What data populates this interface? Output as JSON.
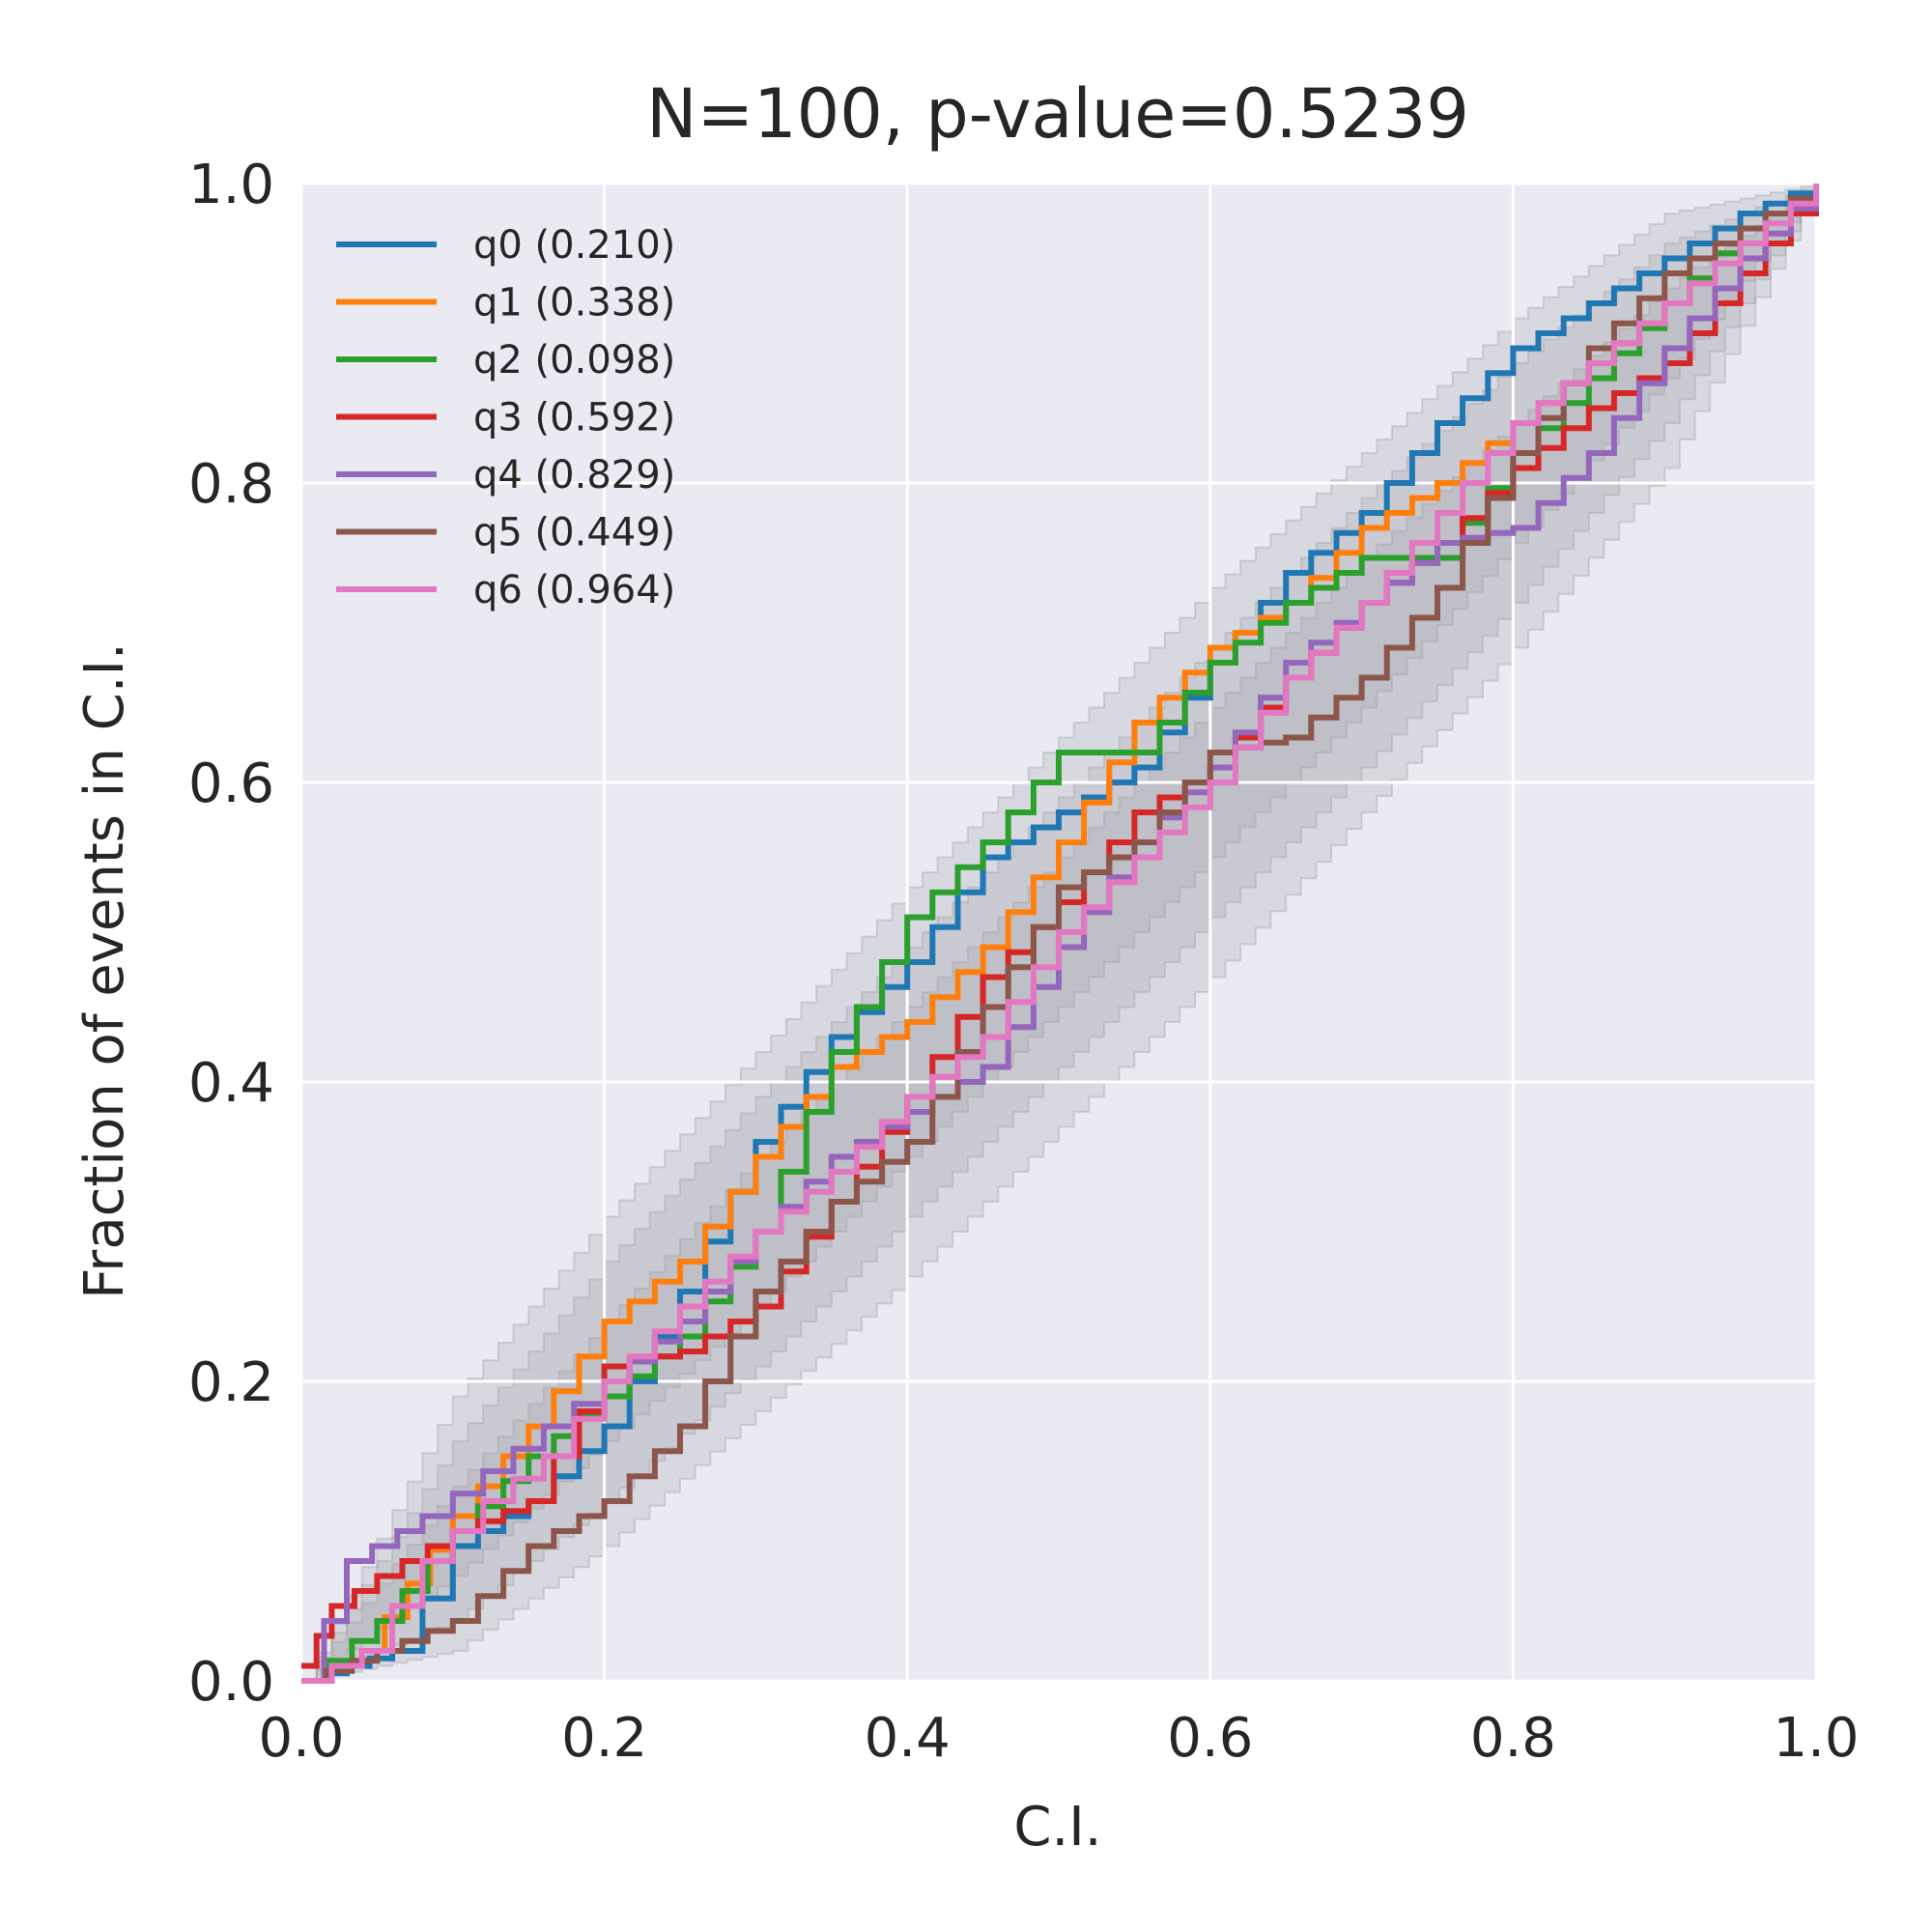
{
  "chart_data": {
    "type": "line",
    "title": "N=100, p-value=0.5239",
    "xlabel": "C.I.",
    "ylabel": "Fraction of events in C.I.",
    "xlim": [
      0,
      1
    ],
    "ylim": [
      0,
      1
    ],
    "xticks": [
      "0.0",
      "0.2",
      "0.4",
      "0.6",
      "0.8",
      "1.0"
    ],
    "yticks": [
      "0.0",
      "0.2",
      "0.4",
      "0.6",
      "0.8",
      "1.0"
    ],
    "grid": true,
    "legend_position": "top-left",
    "colors": {
      "background": "#EAEAF2",
      "bands": "#9A9A9E",
      "q0": "#1F77B4",
      "q1": "#FF7F0E",
      "q2": "#2CA02C",
      "q3": "#D62728",
      "q4": "#9467BD",
      "q5": "#8C564B",
      "q6": "#E377C2"
    },
    "confidence_bands": [
      {
        "level": "inner",
        "x": [
          0,
          0.1,
          0.2,
          0.3,
          0.4,
          0.5,
          0.6,
          0.7,
          0.8,
          0.9,
          1.0
        ],
        "lower": [
          0,
          0.07,
          0.16,
          0.25,
          0.35,
          0.45,
          0.55,
          0.65,
          0.76,
          0.87,
          1.0
        ],
        "upper": [
          0,
          0.13,
          0.24,
          0.35,
          0.45,
          0.55,
          0.65,
          0.75,
          0.84,
          0.93,
          1.0
        ]
      },
      {
        "level": "middle",
        "x": [
          0,
          0.1,
          0.2,
          0.3,
          0.4,
          0.5,
          0.6,
          0.7,
          0.8,
          0.9,
          1.0
        ],
        "lower": [
          0,
          0.04,
          0.12,
          0.21,
          0.31,
          0.41,
          0.51,
          0.61,
          0.72,
          0.84,
          1.0
        ],
        "upper": [
          0,
          0.16,
          0.28,
          0.39,
          0.49,
          0.59,
          0.69,
          0.79,
          0.88,
          0.96,
          1.0
        ]
      },
      {
        "level": "outer",
        "x": [
          0,
          0.1,
          0.2,
          0.3,
          0.4,
          0.5,
          0.6,
          0.7,
          0.8,
          0.9,
          1.0
        ],
        "lower": [
          0,
          0.02,
          0.09,
          0.18,
          0.27,
          0.37,
          0.47,
          0.58,
          0.69,
          0.81,
          1.0
        ],
        "upper": [
          0,
          0.19,
          0.31,
          0.42,
          0.53,
          0.63,
          0.73,
          0.82,
          0.91,
          0.98,
          1.0
        ]
      }
    ],
    "series": [
      {
        "name": "q0 (0.210)",
        "x": [
          0,
          0.06,
          0.1,
          0.15,
          0.2,
          0.25,
          0.3,
          0.35,
          0.4,
          0.45,
          0.5,
          0.55,
          0.6,
          0.65,
          0.7,
          0.75,
          0.8,
          0.85,
          0.9,
          0.95,
          1.0
        ],
        "y": [
          0,
          0.02,
          0.09,
          0.12,
          0.17,
          0.26,
          0.36,
          0.43,
          0.48,
          0.55,
          0.58,
          0.61,
          0.68,
          0.74,
          0.78,
          0.84,
          0.89,
          0.92,
          0.95,
          0.98,
          1.0
        ]
      },
      {
        "name": "q1 (0.338)",
        "x": [
          0,
          0.04,
          0.1,
          0.15,
          0.2,
          0.25,
          0.3,
          0.35,
          0.4,
          0.45,
          0.5,
          0.55,
          0.6,
          0.65,
          0.7,
          0.75,
          0.8,
          0.85,
          0.9,
          0.95,
          1.0
        ],
        "y": [
          0,
          0.02,
          0.11,
          0.17,
          0.24,
          0.28,
          0.35,
          0.41,
          0.44,
          0.49,
          0.56,
          0.64,
          0.69,
          0.72,
          0.77,
          0.8,
          0.84,
          0.88,
          0.92,
          0.97,
          1.0
        ]
      },
      {
        "name": "q2 (0.098)",
        "x": [
          0,
          0.05,
          0.1,
          0.15,
          0.2,
          0.25,
          0.3,
          0.35,
          0.4,
          0.45,
          0.5,
          0.55,
          0.6,
          0.65,
          0.7,
          0.75,
          0.8,
          0.85,
          0.9,
          0.95,
          1.0
        ],
        "y": [
          0,
          0.04,
          0.1,
          0.15,
          0.19,
          0.23,
          0.3,
          0.42,
          0.51,
          0.56,
          0.62,
          0.62,
          0.68,
          0.72,
          0.75,
          0.75,
          0.82,
          0.87,
          0.92,
          0.97,
          1.0
        ]
      },
      {
        "name": "q3 (0.592)",
        "x": [
          0,
          0.02,
          0.05,
          0.1,
          0.15,
          0.2,
          0.25,
          0.3,
          0.35,
          0.4,
          0.45,
          0.5,
          0.55,
          0.6,
          0.65,
          0.7,
          0.75,
          0.8,
          0.85,
          0.9,
          0.95,
          1.0
        ],
        "y": [
          0.01,
          0.05,
          0.07,
          0.1,
          0.12,
          0.21,
          0.22,
          0.25,
          0.32,
          0.39,
          0.47,
          0.52,
          0.58,
          0.61,
          0.67,
          0.72,
          0.76,
          0.81,
          0.85,
          0.88,
          0.94,
          1.0
        ]
      },
      {
        "name": "q4 (0.829)",
        "x": [
          0,
          0.03,
          0.08,
          0.12,
          0.16,
          0.2,
          0.25,
          0.3,
          0.35,
          0.4,
          0.45,
          0.5,
          0.55,
          0.6,
          0.65,
          0.7,
          0.75,
          0.8,
          0.85,
          0.9,
          0.95,
          1.0
        ],
        "y": [
          0,
          0.08,
          0.11,
          0.14,
          0.17,
          0.2,
          0.24,
          0.3,
          0.35,
          0.38,
          0.41,
          0.49,
          0.56,
          0.61,
          0.68,
          0.72,
          0.76,
          0.77,
          0.82,
          0.89,
          0.95,
          1.0
        ]
      },
      {
        "name": "q5 (0.449)",
        "x": [
          0,
          0.05,
          0.1,
          0.15,
          0.2,
          0.25,
          0.3,
          0.35,
          0.4,
          0.45,
          0.5,
          0.55,
          0.6,
          0.65,
          0.7,
          0.75,
          0.8,
          0.85,
          0.9,
          0.95,
          1.0
        ],
        "y": [
          0,
          0.02,
          0.04,
          0.09,
          0.12,
          0.17,
          0.26,
          0.32,
          0.36,
          0.45,
          0.53,
          0.56,
          0.62,
          0.63,
          0.67,
          0.73,
          0.82,
          0.89,
          0.94,
          0.97,
          1.0
        ]
      },
      {
        "name": "q6 (0.964)",
        "x": [
          0,
          0.04,
          0.08,
          0.12,
          0.16,
          0.2,
          0.25,
          0.3,
          0.35,
          0.4,
          0.45,
          0.5,
          0.55,
          0.6,
          0.65,
          0.7,
          0.75,
          0.8,
          0.85,
          0.9,
          0.95,
          1.0
        ],
        "y": [
          0,
          0.02,
          0.08,
          0.12,
          0.15,
          0.2,
          0.25,
          0.3,
          0.34,
          0.39,
          0.43,
          0.5,
          0.55,
          0.6,
          0.67,
          0.72,
          0.78,
          0.84,
          0.88,
          0.92,
          0.96,
          1.0
        ]
      }
    ]
  }
}
